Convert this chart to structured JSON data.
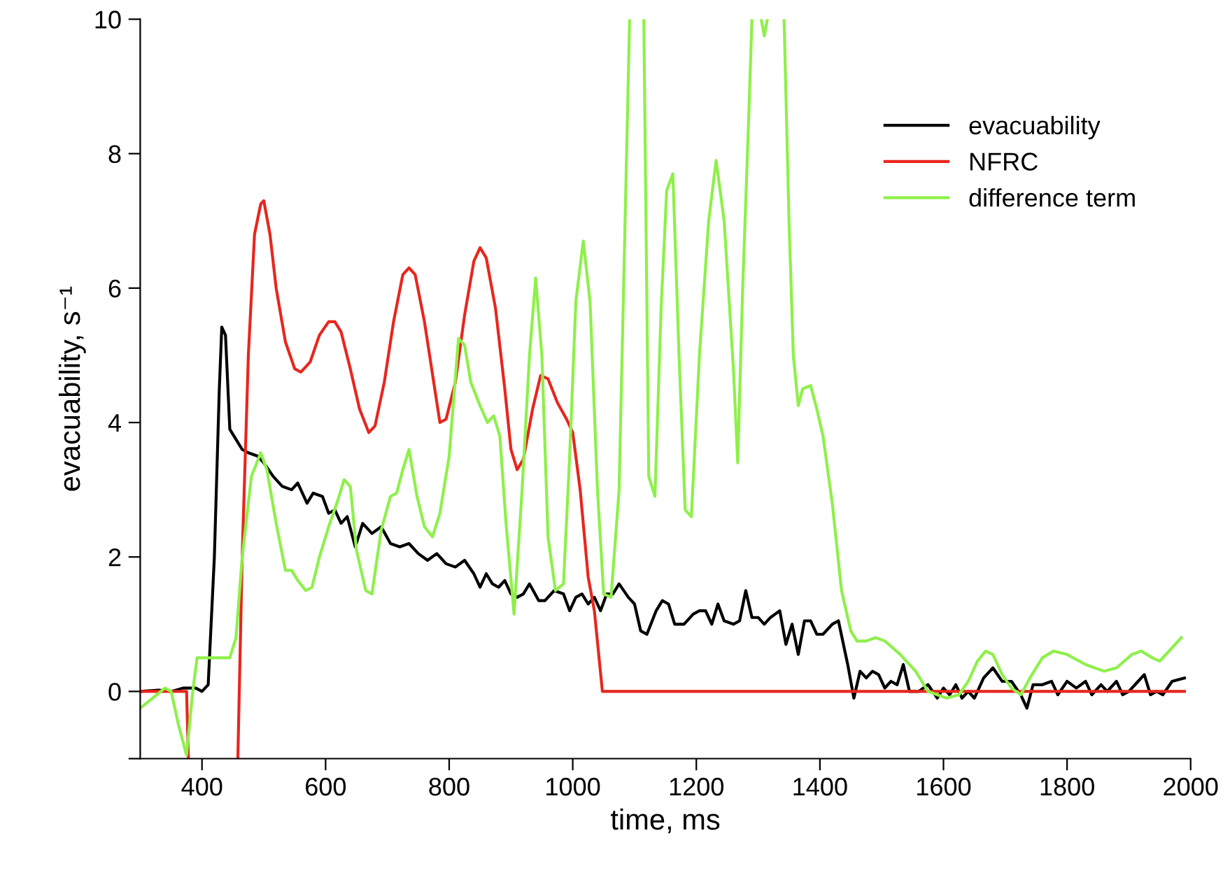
{
  "chart_data": {
    "type": "line",
    "xlabel": "time, ms",
    "ylabel": "evacuability, s⁻¹",
    "xlim": [
      300,
      2000
    ],
    "ylim": [
      -1,
      10
    ],
    "xticks": [
      400,
      600,
      800,
      1000,
      1200,
      1400,
      1600,
      1800,
      2000
    ],
    "yticks": [
      {
        "value": -1,
        "label": null
      },
      0,
      2,
      4,
      6,
      8,
      10
    ],
    "grid": false,
    "legend": "top right",
    "marker": "none",
    "line_style": "solid",
    "series": [
      {
        "name": "evacuability",
        "color": "#000000",
        "x": [
          300,
          330,
          350,
          370,
          390,
          400,
          410,
          420,
          428,
          432,
          438,
          445,
          455,
          465,
          475,
          490,
          500,
          515,
          530,
          545,
          555,
          570,
          580,
          595,
          605,
          615,
          625,
          635,
          648,
          660,
          675,
          690,
          705,
          720,
          735,
          750,
          765,
          780,
          795,
          810,
          825,
          840,
          850,
          860,
          870,
          880,
          890,
          900,
          910,
          920,
          930,
          945,
          955,
          970,
          985,
          995,
          1005,
          1015,
          1025,
          1035,
          1045,
          1055,
          1065,
          1075,
          1090,
          1100,
          1110,
          1120,
          1135,
          1145,
          1155,
          1165,
          1180,
          1195,
          1205,
          1215,
          1225,
          1235,
          1245,
          1260,
          1270,
          1280,
          1290,
          1300,
          1310,
          1320,
          1335,
          1345,
          1355,
          1365,
          1375,
          1385,
          1395,
          1405,
          1420,
          1430,
          1445,
          1455,
          1465,
          1475,
          1485,
          1495,
          1505,
          1515,
          1525,
          1535,
          1545,
          1560,
          1575,
          1590,
          1600,
          1610,
          1620,
          1630,
          1640,
          1650,
          1665,
          1680,
          1695,
          1710,
          1725,
          1735,
          1745,
          1760,
          1775,
          1785,
          1800,
          1815,
          1830,
          1840,
          1855,
          1865,
          1880,
          1890,
          1900,
          1915,
          1925,
          1935,
          1945,
          1955,
          1970,
          1990
        ],
        "values": [
          0.0,
          0.02,
          0.0,
          0.05,
          0.05,
          0.0,
          0.1,
          2.0,
          4.5,
          5.42,
          5.3,
          3.9,
          3.75,
          3.6,
          3.55,
          3.5,
          3.4,
          3.2,
          3.05,
          3.0,
          3.1,
          2.8,
          2.95,
          2.9,
          2.65,
          2.7,
          2.5,
          2.6,
          2.15,
          2.5,
          2.35,
          2.45,
          2.2,
          2.15,
          2.2,
          2.05,
          1.95,
          2.05,
          1.9,
          1.85,
          1.95,
          1.75,
          1.55,
          1.75,
          1.6,
          1.55,
          1.65,
          1.45,
          1.4,
          1.45,
          1.6,
          1.35,
          1.35,
          1.5,
          1.45,
          1.2,
          1.4,
          1.45,
          1.3,
          1.4,
          1.2,
          1.45,
          1.45,
          1.6,
          1.4,
          1.3,
          0.9,
          0.85,
          1.2,
          1.35,
          1.3,
          1.0,
          1.0,
          1.15,
          1.2,
          1.2,
          1.0,
          1.3,
          1.05,
          1.0,
          1.05,
          1.5,
          1.1,
          1.1,
          1.0,
          1.1,
          1.2,
          0.7,
          1.0,
          0.55,
          1.05,
          1.05,
          0.85,
          0.85,
          1.0,
          1.05,
          0.4,
          -0.1,
          0.3,
          0.2,
          0.3,
          0.25,
          0.05,
          0.15,
          0.1,
          0.4,
          0.0,
          0.0,
          0.1,
          -0.1,
          0.05,
          -0.05,
          0.1,
          -0.1,
          0.0,
          -0.1,
          0.2,
          0.35,
          0.15,
          0.15,
          -0.05,
          -0.25,
          0.1,
          0.1,
          0.15,
          -0.05,
          0.15,
          0.05,
          0.15,
          -0.05,
          0.1,
          0.0,
          0.15,
          -0.05,
          0.0,
          0.15,
          0.25,
          -0.05,
          0.0,
          -0.05,
          0.15,
          0.2
        ]
      },
      {
        "name": "NFRC",
        "color": "#e8261e",
        "x": [
          300,
          370,
          375,
          378,
          420,
          458,
          465,
          475,
          485,
          495,
          500,
          510,
          520,
          535,
          550,
          560,
          575,
          590,
          605,
          615,
          625,
          640,
          655,
          670,
          680,
          695,
          710,
          725,
          735,
          745,
          760,
          775,
          785,
          795,
          810,
          825,
          840,
          850,
          860,
          875,
          890,
          900,
          910,
          920,
          935,
          948,
          960,
          975,
          990,
          1000,
          1012,
          1025,
          1035,
          1048,
          1990
        ],
        "values": [
          0,
          0,
          0,
          -1,
          null,
          -1,
          2,
          5,
          6.8,
          7.25,
          7.3,
          6.8,
          6.0,
          5.2,
          4.8,
          4.75,
          4.9,
          5.3,
          5.5,
          5.5,
          5.35,
          4.8,
          4.2,
          3.85,
          3.95,
          4.6,
          5.5,
          6.2,
          6.3,
          6.2,
          5.5,
          4.6,
          4.0,
          4.05,
          4.6,
          5.6,
          6.4,
          6.6,
          6.45,
          5.7,
          4.5,
          3.6,
          3.3,
          3.45,
          4.2,
          4.7,
          4.65,
          4.3,
          4.05,
          3.85,
          3.0,
          1.7,
          1.2,
          0.0,
          0.0
        ]
      },
      {
        "name": "difference term",
        "color": "#8ef04a",
        "x": [
          300,
          320,
          340,
          350,
          362,
          375,
          385,
          392,
          430,
          445,
          455,
          465,
          480,
          495,
          505,
          520,
          535,
          545,
          555,
          568,
          578,
          590,
          605,
          620,
          630,
          640,
          650,
          665,
          675,
          690,
          705,
          715,
          725,
          735,
          748,
          760,
          773,
          785,
          800,
          815,
          825,
          835,
          850,
          862,
          872,
          882,
          892,
          905,
          918,
          930,
          940,
          950,
          960,
          972,
          985,
          995,
          1005,
          1017,
          1028,
          1040,
          1050,
          1062,
          1075,
          1092,
          1100,
          1115,
          1123,
          1133,
          1143,
          1152,
          1162,
          1172,
          1182,
          1192,
          1205,
          1220,
          1232,
          1245,
          1260,
          1267,
          1275,
          1285,
          1290,
          1298,
          1305,
          1310,
          1315,
          1330,
          1342,
          1350,
          1357,
          1365,
          1372,
          1385,
          1395,
          1405,
          1420,
          1435,
          1450,
          1460,
          1475,
          1490,
          1505,
          1530,
          1555,
          1575,
          1590,
          1605,
          1625,
          1640,
          1655,
          1668,
          1680,
          1695,
          1710,
          1725,
          1740,
          1760,
          1778,
          1800,
          1830,
          1860,
          1880,
          1905,
          1920,
          1938,
          1950,
          1965,
          1985
        ],
        "values": [
          -0.25,
          -0.1,
          0.05,
          0.0,
          -0.5,
          -0.95,
          0.0,
          0.5,
          0.5,
          0.5,
          0.8,
          2.0,
          3.2,
          3.55,
          3.3,
          2.5,
          1.8,
          1.8,
          1.65,
          1.5,
          1.55,
          2.0,
          2.45,
          2.85,
          3.15,
          3.05,
          2.1,
          1.5,
          1.45,
          2.4,
          2.9,
          2.95,
          3.3,
          3.6,
          2.9,
          2.45,
          2.3,
          2.65,
          3.5,
          5.25,
          5.15,
          4.6,
          4.25,
          4.0,
          4.1,
          3.8,
          2.5,
          1.15,
          3.0,
          5.0,
          6.15,
          5.0,
          2.3,
          1.5,
          1.6,
          3.5,
          5.8,
          6.7,
          5.8,
          3.0,
          1.45,
          1.4,
          3.0,
          10,
          null,
          10,
          3.2,
          2.9,
          5.7,
          7.45,
          7.7,
          5.0,
          2.7,
          2.6,
          5.0,
          7.0,
          7.9,
          7.0,
          4.8,
          3.4,
          6.0,
          8.6,
          10,
          null,
          10,
          9.75,
          10,
          null,
          10,
          7.0,
          5.0,
          4.25,
          4.5,
          4.55,
          4.2,
          3.8,
          2.8,
          1.5,
          0.9,
          0.75,
          0.75,
          0.8,
          0.75,
          0.55,
          0.3,
          0.0,
          -0.05,
          -0.1,
          -0.05,
          0.15,
          0.45,
          0.6,
          0.55,
          0.25,
          0.05,
          -0.05,
          0.2,
          0.5,
          0.6,
          0.55,
          0.4,
          0.3,
          0.35,
          0.55,
          0.6,
          0.5,
          0.45,
          0.6,
          0.8
        ]
      }
    ]
  }
}
